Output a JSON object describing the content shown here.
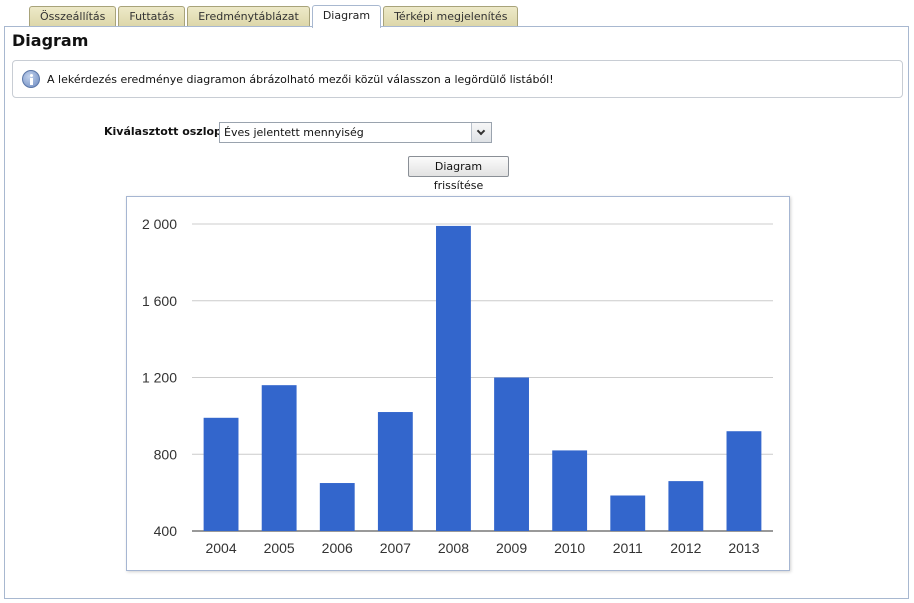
{
  "tabs": [
    {
      "label": "Összeállítás",
      "active": false
    },
    {
      "label": "Futtatás",
      "active": false
    },
    {
      "label": "Eredménytáblázat",
      "active": false
    },
    {
      "label": "Diagram",
      "active": true
    },
    {
      "label": "Térképi megjelenítés",
      "active": false
    }
  ],
  "page": {
    "title": "Diagram",
    "info_text": "A lekérdezés eredménye diagramon ábrázolható mezői közül válasszon a legördülő listából!",
    "info_icon": "info-icon"
  },
  "column_select": {
    "label": "Kiválasztott oszlop",
    "value": "Éves jelentett mennyiség"
  },
  "refresh_button": {
    "label": "Diagram frissítése"
  },
  "chart_data": {
    "type": "bar",
    "categories": [
      "2004",
      "2005",
      "2006",
      "2007",
      "2008",
      "2009",
      "2010",
      "2011",
      "2012",
      "2013"
    ],
    "values": [
      990,
      1160,
      650,
      1020,
      1990,
      1200,
      820,
      585,
      660,
      920
    ],
    "ylim": [
      400,
      2000
    ],
    "yticks": [
      400,
      800,
      1200,
      1600,
      2000
    ],
    "ytick_labels": [
      "400",
      "800",
      "1 200",
      "1 600",
      "2 000"
    ],
    "bar_color": "#3366cc",
    "grid": true,
    "legend": "none"
  }
}
